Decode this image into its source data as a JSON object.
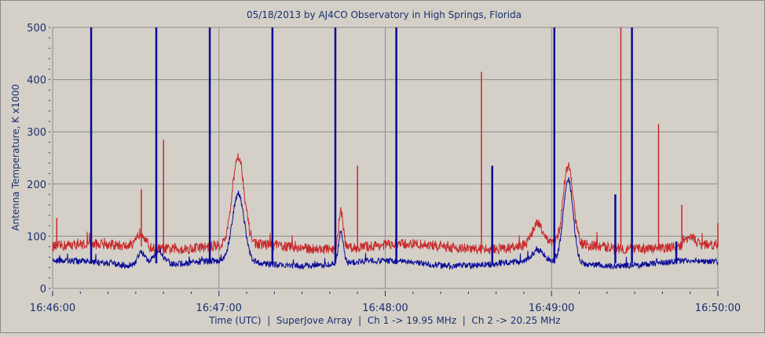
{
  "chart_data": {
    "type": "line",
    "title": "05/18/2013  by  AJ4CO Observatory  in  High Springs, Florida",
    "xlabel": "Time (UTC)  |  SuperJove Array  |  Ch 1 -> 19.95 MHz  |  Ch 2 -> 20.25 MHz",
    "ylabel": "Antenna Temperature, K x1000",
    "x_unit": "seconds after 16:46:00",
    "xlim": [
      0,
      240
    ],
    "ylim": [
      0,
      500
    ],
    "x_ticks": [
      {
        "v": 0,
        "label": "16:46:00"
      },
      {
        "v": 60,
        "label": "16:47:00"
      },
      {
        "v": 120,
        "label": "16:48:00"
      },
      {
        "v": 180,
        "label": "16:49:00"
      },
      {
        "v": 240,
        "label": "16:50:00"
      }
    ],
    "y_ticks": [
      0,
      100,
      200,
      300,
      400,
      500
    ],
    "grid": true,
    "series": [
      {
        "name": "Ch 2 -> 20.25 MHz",
        "color": "#c8282a",
        "baseline": 80,
        "noise": 10,
        "bursts": [
          [
            32,
            30,
            2
          ],
          [
            67,
            170,
            3
          ],
          [
            104,
            70,
            1.2
          ],
          [
            186,
            150,
            2.5
          ],
          [
            175,
            40,
            3
          ],
          [
            230,
            20,
            2
          ]
        ],
        "spikes": [
          [
            1.5,
            135
          ],
          [
            32,
            190
          ],
          [
            40,
            285
          ],
          [
            110,
            235
          ],
          [
            154.7,
            415
          ],
          [
            205,
            500
          ],
          [
            218.6,
            315
          ],
          [
            227,
            160
          ],
          [
            240,
            125
          ]
        ]
      },
      {
        "name": "Ch 1 -> 19.95 MHz",
        "color": "#0a0a96",
        "baseline": 48,
        "noise": 6,
        "bursts": [
          [
            32,
            25,
            2
          ],
          [
            38,
            25,
            3
          ],
          [
            67,
            130,
            3
          ],
          [
            104,
            60,
            1.2
          ],
          [
            186,
            160,
            2.5
          ],
          [
            175,
            20,
            3
          ]
        ],
        "spikes": [
          [
            13.9,
            500
          ],
          [
            37.4,
            500
          ],
          [
            56.7,
            500
          ],
          [
            79.3,
            500
          ],
          [
            102,
            500
          ],
          [
            124,
            500
          ],
          [
            158.6,
            235
          ],
          [
            181,
            500
          ],
          [
            203,
            180
          ],
          [
            209,
            500
          ],
          [
            225,
            90
          ]
        ]
      }
    ]
  }
}
